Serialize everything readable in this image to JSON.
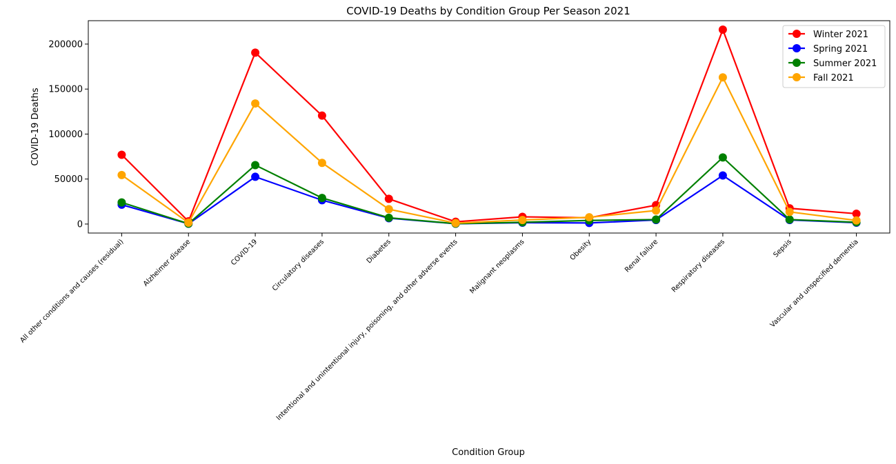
{
  "chart_data": {
    "type": "line",
    "title": "COVID-19 Deaths by Condition Group Per Season 2021",
    "xlabel": "Condition Group",
    "ylabel": "COVID-19 Deaths",
    "ylim": [
      -10000,
      226000
    ],
    "yticks": [
      0,
      50000,
      100000,
      150000,
      200000
    ],
    "grid": false,
    "legend_position": "top-right",
    "categories": [
      "All other conditions and causes (residual)",
      "Alzheimer disease",
      "COVID-19",
      "Circulatory diseases",
      "Diabetes",
      "Intentional and unintentional injury, poisoning, and other adverse events",
      "Malignant neoplasms",
      "Obesity",
      "Renal failure",
      "Respiratory diseases",
      "Sepsis",
      "Vascular and unspecified dementia"
    ],
    "series": [
      {
        "name": "Winter 2021",
        "color": "#ff0000",
        "values": [
          77000,
          3000,
          190500,
          120500,
          28000,
          2500,
          8000,
          7000,
          21000,
          216000,
          17500,
          11500
        ]
      },
      {
        "name": "Spring 2021",
        "color": "#0000ff",
        "values": [
          21500,
          300,
          52500,
          26500,
          6500,
          300,
          1500,
          1200,
          4500,
          54000,
          4500,
          1500
        ]
      },
      {
        "name": "Summer 2021",
        "color": "#008000",
        "values": [
          24000,
          400,
          65500,
          29000,
          7000,
          400,
          2000,
          4000,
          5000,
          74000,
          5000,
          2000
        ]
      },
      {
        "name": "Fall 2021",
        "color": "#ffa500",
        "values": [
          54500,
          1500,
          134000,
          68000,
          16500,
          1000,
          4500,
          7500,
          15000,
          163000,
          13500,
          4000
        ]
      }
    ]
  }
}
